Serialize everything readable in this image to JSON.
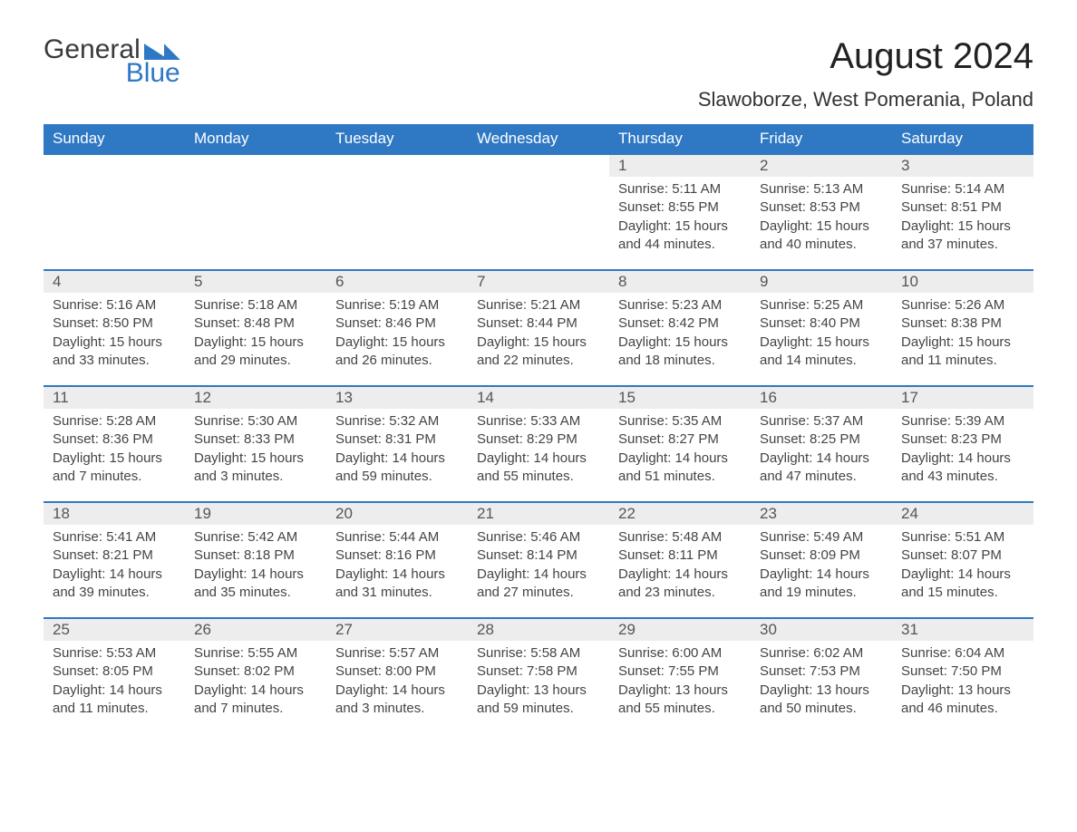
{
  "brand": {
    "word1": "General",
    "word2": "Blue",
    "logo_color": "#2f78c4"
  },
  "title": "August 2024",
  "location": "Slawoborze, West Pomerania, Poland",
  "colors": {
    "header_bg": "#2f78c4",
    "header_text": "#ffffff",
    "daynum_bg": "#ededed",
    "daynum_text": "#555555",
    "body_text": "#444444",
    "row_divider": "#2f78c4",
    "page_bg": "#ffffff"
  },
  "typography": {
    "title_fontsize": 40,
    "location_fontsize": 22,
    "header_fontsize": 17,
    "daynum_fontsize": 17,
    "details_fontsize": 15
  },
  "weekdays": [
    "Sunday",
    "Monday",
    "Tuesday",
    "Wednesday",
    "Thursday",
    "Friday",
    "Saturday"
  ],
  "leading_blanks": 4,
  "days": [
    {
      "n": "1",
      "sunrise": "5:11 AM",
      "sunset": "8:55 PM",
      "daylight": "15 hours and 44 minutes."
    },
    {
      "n": "2",
      "sunrise": "5:13 AM",
      "sunset": "8:53 PM",
      "daylight": "15 hours and 40 minutes."
    },
    {
      "n": "3",
      "sunrise": "5:14 AM",
      "sunset": "8:51 PM",
      "daylight": "15 hours and 37 minutes."
    },
    {
      "n": "4",
      "sunrise": "5:16 AM",
      "sunset": "8:50 PM",
      "daylight": "15 hours and 33 minutes."
    },
    {
      "n": "5",
      "sunrise": "5:18 AM",
      "sunset": "8:48 PM",
      "daylight": "15 hours and 29 minutes."
    },
    {
      "n": "6",
      "sunrise": "5:19 AM",
      "sunset": "8:46 PM",
      "daylight": "15 hours and 26 minutes."
    },
    {
      "n": "7",
      "sunrise": "5:21 AM",
      "sunset": "8:44 PM",
      "daylight": "15 hours and 22 minutes."
    },
    {
      "n": "8",
      "sunrise": "5:23 AM",
      "sunset": "8:42 PM",
      "daylight": "15 hours and 18 minutes."
    },
    {
      "n": "9",
      "sunrise": "5:25 AM",
      "sunset": "8:40 PM",
      "daylight": "15 hours and 14 minutes."
    },
    {
      "n": "10",
      "sunrise": "5:26 AM",
      "sunset": "8:38 PM",
      "daylight": "15 hours and 11 minutes."
    },
    {
      "n": "11",
      "sunrise": "5:28 AM",
      "sunset": "8:36 PM",
      "daylight": "15 hours and 7 minutes."
    },
    {
      "n": "12",
      "sunrise": "5:30 AM",
      "sunset": "8:33 PM",
      "daylight": "15 hours and 3 minutes."
    },
    {
      "n": "13",
      "sunrise": "5:32 AM",
      "sunset": "8:31 PM",
      "daylight": "14 hours and 59 minutes."
    },
    {
      "n": "14",
      "sunrise": "5:33 AM",
      "sunset": "8:29 PM",
      "daylight": "14 hours and 55 minutes."
    },
    {
      "n": "15",
      "sunrise": "5:35 AM",
      "sunset": "8:27 PM",
      "daylight": "14 hours and 51 minutes."
    },
    {
      "n": "16",
      "sunrise": "5:37 AM",
      "sunset": "8:25 PM",
      "daylight": "14 hours and 47 minutes."
    },
    {
      "n": "17",
      "sunrise": "5:39 AM",
      "sunset": "8:23 PM",
      "daylight": "14 hours and 43 minutes."
    },
    {
      "n": "18",
      "sunrise": "5:41 AM",
      "sunset": "8:21 PM",
      "daylight": "14 hours and 39 minutes."
    },
    {
      "n": "19",
      "sunrise": "5:42 AM",
      "sunset": "8:18 PM",
      "daylight": "14 hours and 35 minutes."
    },
    {
      "n": "20",
      "sunrise": "5:44 AM",
      "sunset": "8:16 PM",
      "daylight": "14 hours and 31 minutes."
    },
    {
      "n": "21",
      "sunrise": "5:46 AM",
      "sunset": "8:14 PM",
      "daylight": "14 hours and 27 minutes."
    },
    {
      "n": "22",
      "sunrise": "5:48 AM",
      "sunset": "8:11 PM",
      "daylight": "14 hours and 23 minutes."
    },
    {
      "n": "23",
      "sunrise": "5:49 AM",
      "sunset": "8:09 PM",
      "daylight": "14 hours and 19 minutes."
    },
    {
      "n": "24",
      "sunrise": "5:51 AM",
      "sunset": "8:07 PM",
      "daylight": "14 hours and 15 minutes."
    },
    {
      "n": "25",
      "sunrise": "5:53 AM",
      "sunset": "8:05 PM",
      "daylight": "14 hours and 11 minutes."
    },
    {
      "n": "26",
      "sunrise": "5:55 AM",
      "sunset": "8:02 PM",
      "daylight": "14 hours and 7 minutes."
    },
    {
      "n": "27",
      "sunrise": "5:57 AM",
      "sunset": "8:00 PM",
      "daylight": "14 hours and 3 minutes."
    },
    {
      "n": "28",
      "sunrise": "5:58 AM",
      "sunset": "7:58 PM",
      "daylight": "13 hours and 59 minutes."
    },
    {
      "n": "29",
      "sunrise": "6:00 AM",
      "sunset": "7:55 PM",
      "daylight": "13 hours and 55 minutes."
    },
    {
      "n": "30",
      "sunrise": "6:02 AM",
      "sunset": "7:53 PM",
      "daylight": "13 hours and 50 minutes."
    },
    {
      "n": "31",
      "sunrise": "6:04 AM",
      "sunset": "7:50 PM",
      "daylight": "13 hours and 46 minutes."
    }
  ],
  "labels": {
    "sunrise": "Sunrise:",
    "sunset": "Sunset:",
    "daylight": "Daylight:"
  }
}
